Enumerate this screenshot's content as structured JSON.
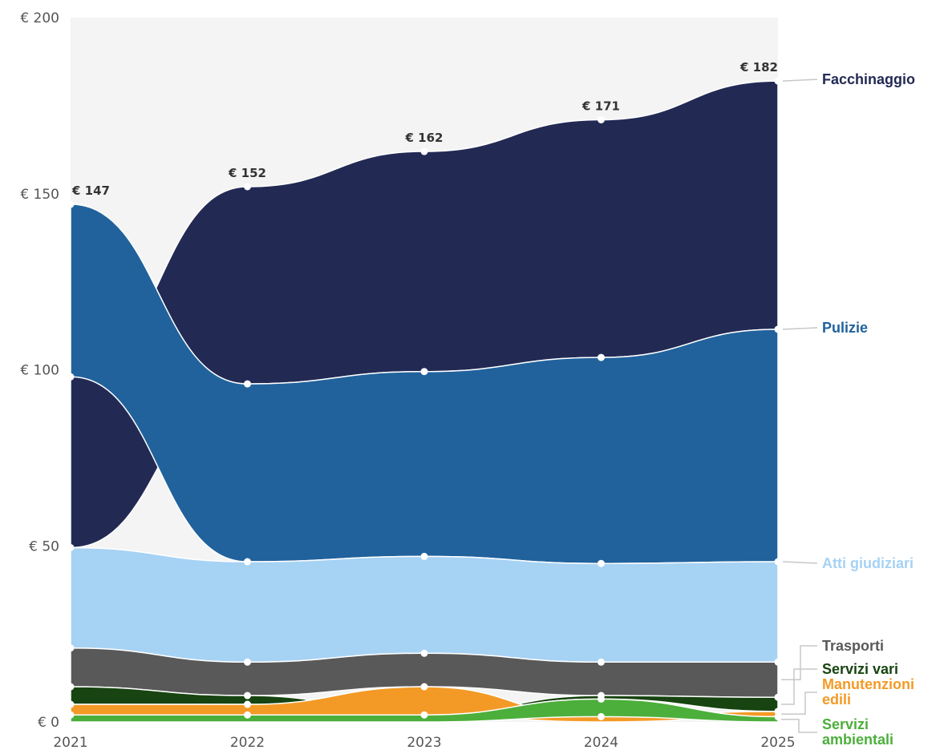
{
  "chart_data": {
    "type": "area",
    "stacking": "stream",
    "x": [
      "2021",
      "2022",
      "2023",
      "2024",
      "2025"
    ],
    "ylim": [
      0,
      200
    ],
    "y_ticks": [
      "€ 0",
      "€ 50",
      "€ 100",
      "€ 150",
      "€ 200"
    ],
    "y_tick_values": [
      0,
      50,
      100,
      150,
      200
    ],
    "grid": false,
    "background": "#f4f4f4",
    "legend_placement": "right",
    "totals_labels": [
      "€ 147",
      "€ 152",
      "€ 162",
      "€ 171",
      "€ 182"
    ],
    "totals": [
      147,
      152,
      162,
      171,
      182
    ],
    "series": [
      {
        "name": "Servizi ambientali",
        "color": "#4caf3b",
        "values": [
          2,
          2,
          2,
          5,
          1.5
        ]
      },
      {
        "name": "Manutenzioni edili",
        "color": "#f39a26",
        "values": [
          3,
          3,
          8,
          1.5,
          1.5
        ]
      },
      {
        "name": "Servizi vari",
        "color": "#174410",
        "values": [
          5,
          2.5,
          0,
          1,
          4
        ]
      },
      {
        "name": "Trasporti",
        "color": "#595959",
        "values": [
          11,
          9.5,
          9.5,
          9.5,
          10
        ]
      },
      {
        "name": "Atti giudiziari",
        "color": "#a6d2f4",
        "values": [
          28.5,
          28.5,
          27.5,
          28,
          28.5
        ]
      },
      {
        "name": "Pulizie",
        "color": "#21629c",
        "values": [
          49,
          50.5,
          52.5,
          58.5,
          66
        ]
      },
      {
        "name": "Facchinaggio",
        "color": "#222a54",
        "values": [
          48.5,
          56,
          62.5,
          67.5,
          70.5
        ]
      }
    ],
    "order_by_year": [
      [
        "Servizi ambientali",
        "Manutenzioni edili",
        "Servizi vari",
        "Trasporti",
        "Atti giudiziari",
        "Facchinaggio",
        "Pulizie"
      ],
      [
        "Servizi ambientali",
        "Manutenzioni edili",
        "Servizi vari",
        "Trasporti",
        "Atti giudiziari",
        "Pulizie",
        "Facchinaggio"
      ],
      [
        "Servizi ambientali",
        "Servizi vari",
        "Manutenzioni edili",
        "Trasporti",
        "Atti giudiziari",
        "Pulizie",
        "Facchinaggio"
      ],
      [
        "Manutenzioni edili",
        "Servizi ambientali",
        "Servizi vari",
        "Trasporti",
        "Atti giudiziari",
        "Pulizie",
        "Facchinaggio"
      ],
      [
        "Servizi ambientali",
        "Manutenzioni edili",
        "Servizi vari",
        "Trasporti",
        "Atti giudiziari",
        "Pulizie",
        "Facchinaggio"
      ]
    ],
    "legend": [
      {
        "lines": [
          "Facchinaggio"
        ],
        "color": "#222a54"
      },
      {
        "lines": [
          "Pulizie"
        ],
        "color": "#21629c"
      },
      {
        "lines": [
          "Atti giudiziari"
        ],
        "color": "#a6d2f4"
      },
      {
        "lines": [
          "Trasporti"
        ],
        "color": "#595959"
      },
      {
        "lines": [
          "Servizi vari"
        ],
        "color": "#174410"
      },
      {
        "lines": [
          "Manutenzioni",
          "edili"
        ],
        "color": "#f39a26"
      },
      {
        "lines": [
          "Servizi",
          "ambientali"
        ],
        "color": "#4caf3b"
      }
    ]
  }
}
